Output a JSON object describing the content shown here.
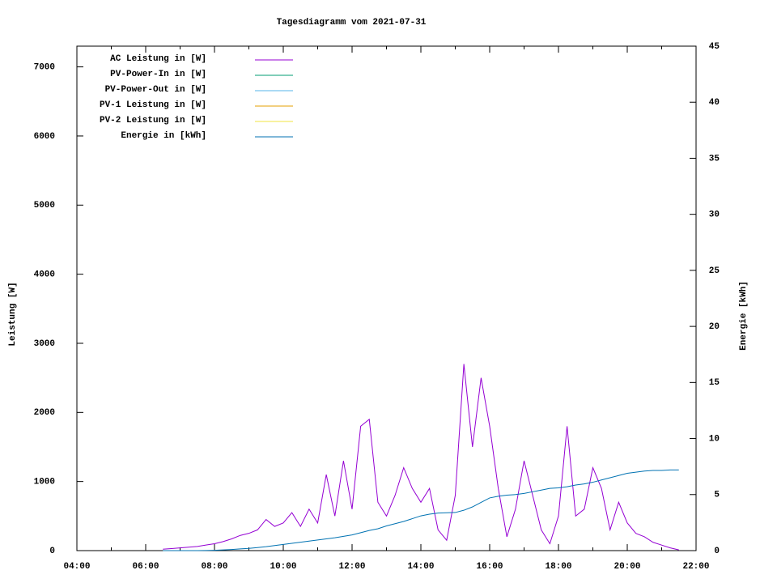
{
  "chart_data": {
    "type": "line",
    "title": "Tagesdiagramm vom 2021-07-31",
    "ylabel": "Leistung [W]",
    "y2label": "Energie [kWh]",
    "legend": "top-left",
    "xlim": [
      4,
      22
    ],
    "xticks": [
      {
        "value": 4,
        "label": "04:00"
      },
      {
        "value": 6,
        "label": "06:00"
      },
      {
        "value": 8,
        "label": "08:00"
      },
      {
        "value": 10,
        "label": "10:00"
      },
      {
        "value": 12,
        "label": "12:00"
      },
      {
        "value": 14,
        "label": "14:00"
      },
      {
        "value": 16,
        "label": "16:00"
      },
      {
        "value": 18,
        "label": "18:00"
      },
      {
        "value": 20,
        "label": "20:00"
      },
      {
        "value": 22,
        "label": "22:00"
      }
    ],
    "ylim": [
      0,
      7300
    ],
    "yticks": [
      0,
      1000,
      2000,
      3000,
      4000,
      5000,
      6000,
      7000
    ],
    "y2lim": [
      0,
      45
    ],
    "y2ticks": [
      0,
      5,
      10,
      15,
      20,
      25,
      30,
      35,
      40,
      45
    ],
    "x": [
      6.5,
      6.75,
      7,
      7.25,
      7.5,
      7.75,
      8,
      8.25,
      8.5,
      8.75,
      9,
      9.25,
      9.5,
      9.75,
      10,
      10.25,
      10.5,
      10.75,
      11,
      11.25,
      11.5,
      11.75,
      12,
      12.25,
      12.5,
      12.75,
      13,
      13.25,
      13.5,
      13.75,
      14,
      14.25,
      14.5,
      14.75,
      15,
      15.25,
      15.5,
      15.75,
      16,
      16.25,
      16.5,
      16.75,
      17,
      17.25,
      17.5,
      17.75,
      18,
      18.25,
      18.5,
      18.75,
      19,
      19.25,
      19.5,
      19.75,
      20,
      20.25,
      20.5,
      20.75,
      21,
      21.25,
      21.5
    ],
    "series": [
      {
        "name": "AC Leistung in [W]",
        "color": "#9400d3",
        "axis": "y",
        "values": [
          20,
          30,
          40,
          50,
          60,
          80,
          100,
          130,
          170,
          220,
          250,
          300,
          450,
          350,
          400,
          550,
          350,
          600,
          400,
          1100,
          500,
          1300,
          600,
          1800,
          1900,
          700,
          500,
          800,
          1200,
          900,
          700,
          900,
          300,
          150,
          800,
          2700,
          1500,
          2500,
          1800,
          900,
          200,
          600,
          1300,
          800,
          300,
          100,
          500,
          1800,
          500,
          600,
          1200,
          900,
          300,
          700,
          400,
          250,
          200,
          120,
          80,
          40,
          10
        ]
      },
      {
        "name": "PV-Power-In in [W]",
        "color": "#009e73",
        "axis": "y",
        "values": [
          null,
          null,
          null,
          null,
          null,
          null,
          null,
          null,
          null,
          null,
          null,
          null,
          null,
          null,
          null,
          null,
          null,
          null,
          null,
          null,
          null,
          null,
          null,
          null,
          null,
          null,
          null,
          null,
          null,
          null,
          null,
          null,
          null,
          null,
          null,
          null,
          null,
          null,
          null,
          null,
          null,
          null,
          null,
          null,
          null,
          null,
          null,
          null,
          null,
          null,
          null,
          null,
          null,
          null,
          null,
          null,
          null,
          null,
          null,
          null,
          null
        ]
      },
      {
        "name": "PV-Power-Out in [W]",
        "color": "#56b4e9",
        "axis": "y",
        "values": [
          null,
          null,
          null,
          null,
          null,
          null,
          null,
          null,
          null,
          null,
          null,
          null,
          null,
          null,
          null,
          null,
          null,
          null,
          null,
          null,
          null,
          null,
          null,
          null,
          null,
          null,
          null,
          null,
          null,
          null,
          null,
          null,
          null,
          null,
          null,
          null,
          null,
          null,
          null,
          null,
          null,
          null,
          null,
          null,
          null,
          null,
          null,
          null,
          null,
          null,
          null,
          null,
          null,
          null,
          null,
          null,
          null,
          null,
          null,
          null,
          null
        ]
      },
      {
        "name": "PV-1 Leistung in [W]",
        "color": "#e69f00",
        "axis": "y",
        "values": [
          null,
          null,
          null,
          null,
          null,
          null,
          null,
          null,
          null,
          null,
          null,
          null,
          null,
          null,
          null,
          null,
          null,
          null,
          null,
          null,
          null,
          null,
          null,
          null,
          null,
          null,
          null,
          null,
          null,
          null,
          null,
          null,
          null,
          null,
          null,
          null,
          null,
          null,
          null,
          null,
          null,
          null,
          null,
          null,
          null,
          null,
          null,
          null,
          null,
          null,
          null,
          null,
          null,
          null,
          null,
          null,
          null,
          null,
          null,
          null,
          null
        ]
      },
      {
        "name": "PV-2 Leistung in [W]",
        "color": "#f0e442",
        "axis": "y",
        "values": [
          null,
          null,
          null,
          null,
          null,
          null,
          null,
          null,
          null,
          null,
          null,
          null,
          null,
          null,
          null,
          null,
          null,
          null,
          null,
          null,
          null,
          null,
          null,
          null,
          null,
          null,
          null,
          null,
          null,
          null,
          null,
          null,
          null,
          null,
          null,
          null,
          null,
          null,
          null,
          null,
          null,
          null,
          null,
          null,
          null,
          null,
          null,
          null,
          null,
          null,
          null,
          null,
          null,
          null,
          null,
          null,
          null,
          null,
          null,
          null,
          null
        ]
      },
      {
        "name": "Energie in [kWh]",
        "color": "#0072b2",
        "axis": "y2",
        "values": [
          0,
          0,
          0,
          0,
          0,
          0.01,
          0.03,
          0.06,
          0.1,
          0.15,
          0.2,
          0.27,
          0.35,
          0.45,
          0.55,
          0.65,
          0.75,
          0.85,
          0.95,
          1.05,
          1.15,
          1.27,
          1.4,
          1.6,
          1.8,
          1.95,
          2.2,
          2.4,
          2.6,
          2.85,
          3.1,
          3.25,
          3.35,
          3.38,
          3.4,
          3.6,
          3.9,
          4.3,
          4.7,
          4.85,
          4.95,
          5.0,
          5.1,
          5.25,
          5.4,
          5.55,
          5.6,
          5.7,
          5.85,
          5.95,
          6.1,
          6.3,
          6.5,
          6.7,
          6.9,
          7.0,
          7.1,
          7.15,
          7.15,
          7.2,
          7.2
        ]
      }
    ]
  }
}
